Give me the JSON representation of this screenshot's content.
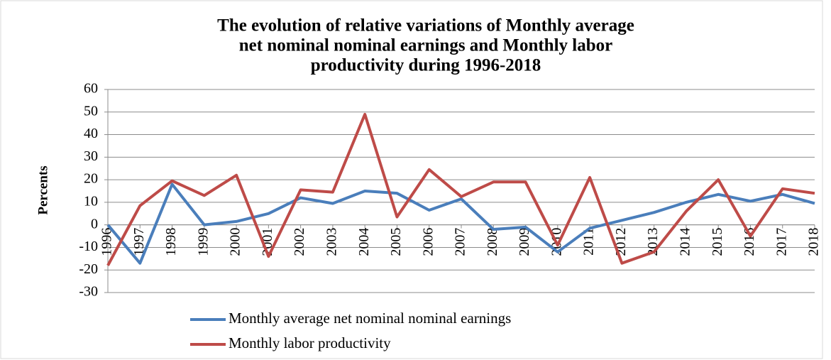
{
  "chart_data": {
    "type": "line",
    "title": [
      "The evolution of relative variations of Monthly average",
      "net nominal nominal earnings and Monthly labor",
      "productivity during 1996-2018"
    ],
    "y_label": "Percents",
    "categories": [
      "1996",
      "1997",
      "1998",
      "1999",
      "2000",
      "2001",
      "2002",
      "2003",
      "2004",
      "2005",
      "2006",
      "2007",
      "2008",
      "2009",
      "2010",
      "2011",
      "2012",
      "2013",
      "2014",
      "2015",
      "2016",
      "2017",
      "2018"
    ],
    "series": [
      {
        "name": "Monthly average net nominal nominal earnings",
        "color": "#4a7ebb",
        "values": [
          0,
          -17,
          18,
          0,
          1.5,
          5,
          12,
          9.5,
          15,
          14,
          6.5,
          11.5,
          -2,
          -1,
          -12,
          -1.5,
          2,
          5.5,
          10,
          13.5,
          10.5,
          13.5,
          9.5
        ]
      },
      {
        "name": "Monthly labor productivity",
        "color": "#be4b48",
        "values": [
          -18,
          8.5,
          19.5,
          13,
          22,
          -14,
          15.5,
          14.5,
          49,
          3.5,
          24.5,
          12.5,
          19,
          19,
          -9,
          21,
          -17,
          -12,
          6,
          20,
          -5,
          16,
          14
        ]
      }
    ],
    "ylim": [
      -30,
      60
    ],
    "yticks": [
      -30,
      -20,
      -10,
      0,
      10,
      20,
      30,
      40,
      50,
      60
    ],
    "grid": true,
    "legend": "bottom"
  }
}
